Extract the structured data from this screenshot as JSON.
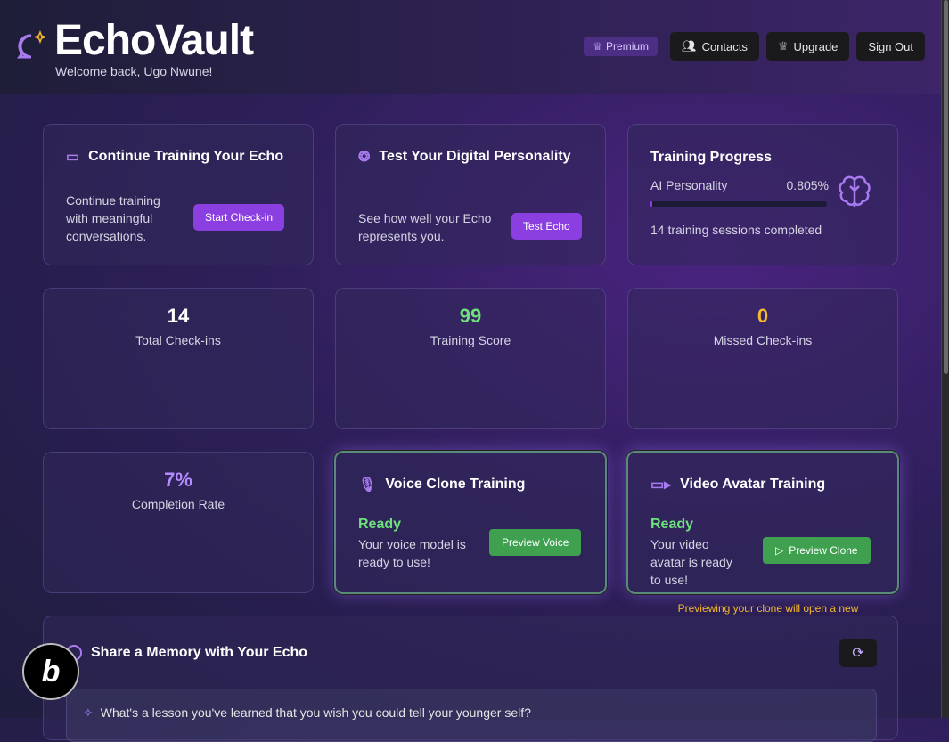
{
  "header": {
    "title": "EchoVault",
    "welcome": "Welcome back, Ugo Nwune!",
    "premium": "Premium",
    "contacts": "Contacts",
    "upgrade": "Upgrade",
    "sign_out": "Sign Out"
  },
  "continue": {
    "title": "Continue Training Your Echo",
    "text": "Continue training with meaningful conversations.",
    "button": "Start Check-in"
  },
  "test": {
    "title": "Test Your Digital Personality",
    "text": "See how well your Echo represents you.",
    "button": "Test Echo"
  },
  "progress": {
    "title": "Training Progress",
    "label": "AI Personality",
    "value": "0.805%",
    "fraction": 0.00805,
    "sessions": "14 training sessions completed"
  },
  "stats": [
    {
      "value": "14",
      "label": "Total Check-ins",
      "color": "#ffffff"
    },
    {
      "value": "99",
      "label": "Training Score",
      "color": "#6ee07c"
    },
    {
      "value": "0",
      "label": "Missed Check-ins",
      "color": "#f5b82e"
    },
    {
      "value": "7%",
      "label": "Completion Rate",
      "color": "#b48cff"
    }
  ],
  "voice": {
    "title": "Voice Clone Training",
    "status": "Ready",
    "text": "Your voice model is ready to use!",
    "button": "Preview Voice"
  },
  "video": {
    "title": "Video Avatar Training",
    "status": "Ready",
    "text": "Your video avatar is ready to use!",
    "button": "Preview Clone",
    "tooltip": "Previewing your clone will open a new"
  },
  "memory": {
    "title": "Share a Memory with Your Echo",
    "prompt": "What's a lesson you've learned that you wish you could tell your younger self?"
  },
  "colors": {
    "accent": "#8b3fe0",
    "green": "#3fa150",
    "amber": "#f5b82e"
  }
}
